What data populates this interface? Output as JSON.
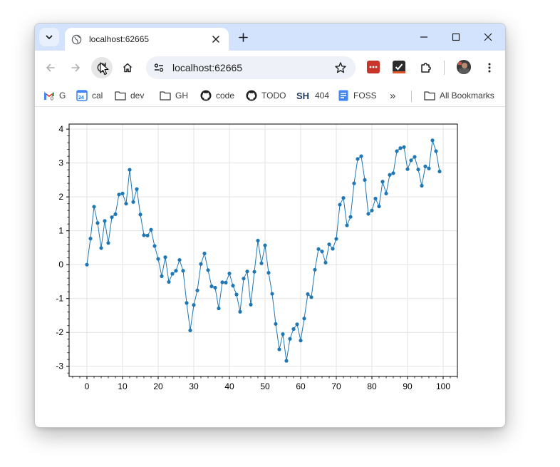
{
  "browser": {
    "tab_title": "localhost:62665",
    "url": "localhost:62665"
  },
  "bookmarks": {
    "items": [
      {
        "label": "G",
        "icon": "gmail-icon"
      },
      {
        "label": "cal",
        "icon": "calendar-icon"
      },
      {
        "label": "dev",
        "icon": "folder-icon"
      },
      {
        "label": "GH",
        "icon": "folder-icon"
      },
      {
        "label": "code",
        "icon": "github-icon"
      },
      {
        "label": "TODO",
        "icon": "github-icon"
      },
      {
        "label": "404",
        "icon": "sh-icon"
      },
      {
        "label": "FOSS",
        "icon": "docs-icon"
      }
    ],
    "more": "»",
    "all_bookmarks": "All Bookmarks"
  },
  "chart_data": {
    "type": "line",
    "title": "",
    "xlabel": "",
    "ylabel": "",
    "xlim": [
      -5,
      104
    ],
    "ylim": [
      -3.3,
      4.15
    ],
    "xticks": [
      0,
      10,
      20,
      30,
      40,
      50,
      60,
      70,
      80,
      90,
      100
    ],
    "yticks": [
      -3,
      -2,
      -1,
      0,
      1,
      2,
      3,
      4
    ],
    "grid": true,
    "color": "#1f77b4",
    "series": [
      {
        "name": "",
        "x": [
          0,
          1,
          2,
          3,
          4,
          5,
          6,
          7,
          8,
          9,
          10,
          11,
          12,
          13,
          14,
          15,
          16,
          17,
          18,
          19,
          20,
          21,
          22,
          23,
          24,
          25,
          26,
          27,
          28,
          29,
          30,
          31,
          32,
          33,
          34,
          35,
          36,
          37,
          38,
          39,
          40,
          41,
          42,
          43,
          44,
          45,
          46,
          47,
          48,
          49,
          50,
          51,
          52,
          53,
          54,
          55,
          56,
          57,
          58,
          59,
          60,
          61,
          62,
          63,
          64,
          65,
          66,
          67,
          68,
          69,
          70,
          71,
          72,
          73,
          74,
          75,
          76,
          77,
          78,
          79,
          80,
          81,
          82,
          83,
          84,
          85,
          86,
          87,
          88,
          89,
          90,
          91,
          92,
          93,
          94,
          95,
          96,
          97,
          98,
          99
        ],
        "y": [
          0.0,
          0.77,
          1.71,
          1.23,
          0.49,
          1.29,
          0.64,
          1.4,
          1.49,
          2.07,
          2.1,
          1.8,
          2.8,
          1.85,
          2.23,
          1.48,
          0.87,
          0.86,
          1.03,
          0.55,
          0.17,
          -0.34,
          0.22,
          -0.51,
          -0.27,
          -0.18,
          0.14,
          -0.18,
          -1.13,
          -1.94,
          -1.19,
          -0.76,
          0.02,
          0.33,
          -0.16,
          -0.64,
          -0.68,
          -1.29,
          -0.52,
          -0.53,
          -0.26,
          -0.62,
          -0.88,
          -1.39,
          -0.41,
          -0.2,
          -1.18,
          -0.21,
          0.71,
          0.04,
          0.57,
          -0.24,
          -0.86,
          -1.75,
          -2.5,
          -2.05,
          -2.84,
          -2.19,
          -1.9,
          -1.76,
          -2.24,
          -1.59,
          -0.87,
          -0.96,
          -0.15,
          0.46,
          0.39,
          0.06,
          0.6,
          0.47,
          0.76,
          1.77,
          1.97,
          1.16,
          1.41,
          2.4,
          3.12,
          3.2,
          2.5,
          1.5,
          1.6,
          1.95,
          1.72,
          2.45,
          2.1,
          2.65,
          2.7,
          3.35,
          3.44,
          3.47,
          2.82,
          3.08,
          3.18,
          2.81,
          2.33,
          2.9,
          2.84,
          3.67,
          3.35,
          2.75
        ]
      }
    ]
  }
}
